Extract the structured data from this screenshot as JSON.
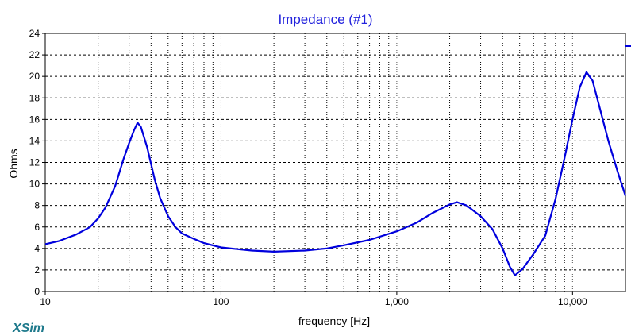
{
  "app": {
    "brand": "XSim"
  },
  "chart_data": {
    "type": "line",
    "title": "Impedance (#1)",
    "xlabel": "frequency [Hz]",
    "ylabel": "Ohms",
    "xscale": "log",
    "xlim": [
      10,
      20000
    ],
    "ylim": [
      0,
      24
    ],
    "yticks": [
      0,
      2,
      4,
      6,
      8,
      10,
      12,
      14,
      16,
      18,
      20,
      22,
      24
    ],
    "xticks": [
      {
        "value": 10,
        "label": "10"
      },
      {
        "value": 100,
        "label": "100"
      },
      {
        "value": 1000,
        "label": "1,000"
      },
      {
        "value": 10000,
        "label": "10,000"
      }
    ],
    "grid": true,
    "series": [
      {
        "color": "#0000dd",
        "points": [
          [
            10,
            4.4
          ],
          [
            12,
            4.7
          ],
          [
            15,
            5.3
          ],
          [
            18,
            6.0
          ],
          [
            20,
            6.8
          ],
          [
            22,
            7.8
          ],
          [
            25,
            9.8
          ],
          [
            28,
            12.4
          ],
          [
            30,
            13.8
          ],
          [
            32,
            15.0
          ],
          [
            33.5,
            15.7
          ],
          [
            35,
            15.3
          ],
          [
            38,
            13.4
          ],
          [
            42,
            10.4
          ],
          [
            45,
            8.7
          ],
          [
            50,
            7.0
          ],
          [
            55,
            6.0
          ],
          [
            60,
            5.4
          ],
          [
            70,
            4.9
          ],
          [
            80,
            4.5
          ],
          [
            100,
            4.1
          ],
          [
            130,
            3.9
          ],
          [
            150,
            3.8
          ],
          [
            200,
            3.7
          ],
          [
            300,
            3.8
          ],
          [
            400,
            4.0
          ],
          [
            500,
            4.3
          ],
          [
            700,
            4.8
          ],
          [
            1000,
            5.6
          ],
          [
            1300,
            6.4
          ],
          [
            1600,
            7.3
          ],
          [
            2000,
            8.1
          ],
          [
            2200,
            8.3
          ],
          [
            2500,
            8.0
          ],
          [
            3000,
            7.0
          ],
          [
            3500,
            5.8
          ],
          [
            4000,
            4.0
          ],
          [
            4400,
            2.3
          ],
          [
            4700,
            1.5
          ],
          [
            5200,
            2.1
          ],
          [
            6000,
            3.5
          ],
          [
            7000,
            5.2
          ],
          [
            8000,
            8.6
          ],
          [
            9000,
            12.4
          ],
          [
            10000,
            16.0
          ],
          [
            11000,
            19.0
          ],
          [
            12000,
            20.4
          ],
          [
            13000,
            19.6
          ],
          [
            14000,
            17.6
          ],
          [
            16000,
            14.0
          ],
          [
            18000,
            11.2
          ],
          [
            20000,
            8.9
          ]
        ]
      }
    ]
  }
}
